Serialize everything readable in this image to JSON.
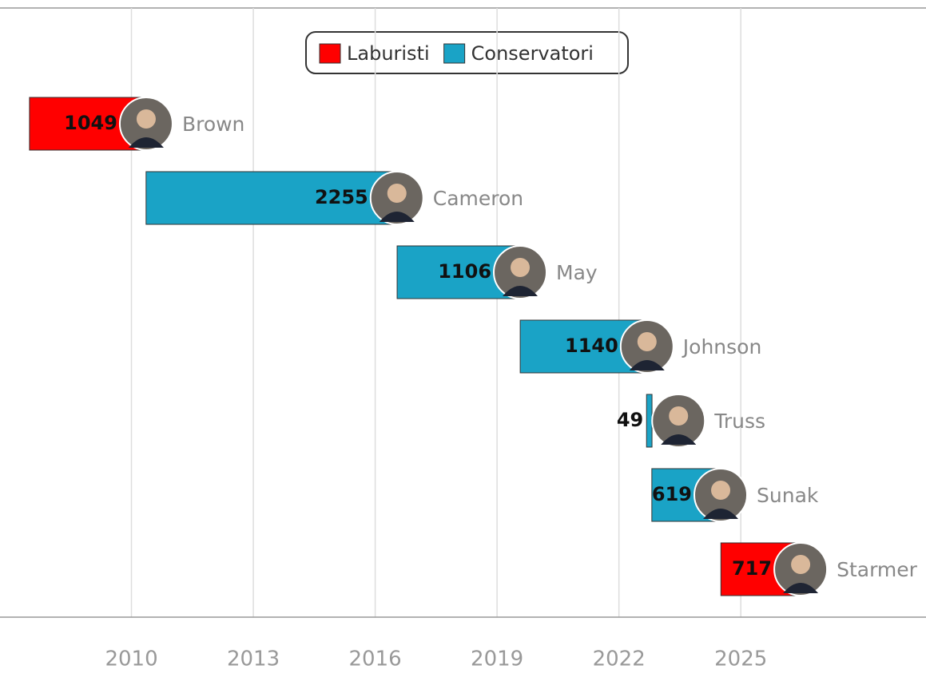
{
  "chart_data": {
    "type": "timeline",
    "categories": [
      "Brown",
      "Cameron",
      "May",
      "Johnson",
      "Truss",
      "Sunak",
      "Starmer"
    ],
    "start": [
      2007.49,
      2010.36,
      2016.54,
      2019.57,
      2022.68,
      2022.81,
      2024.51
    ],
    "series": [
      {
        "name": "Laburisti",
        "color": "#ff0000",
        "values": [
          1049,
          null,
          null,
          null,
          null,
          null,
          717
        ]
      },
      {
        "name": "Conservatori",
        "color": "#1aa3c6",
        "values": [
          null,
          2255,
          1106,
          1140,
          49,
          619,
          null
        ]
      }
    ],
    "xlim": [
      2007,
      2029.5
    ],
    "xticks": [
      2010,
      2013,
      2016,
      2019,
      2022,
      2025
    ],
    "grid": true
  }
}
